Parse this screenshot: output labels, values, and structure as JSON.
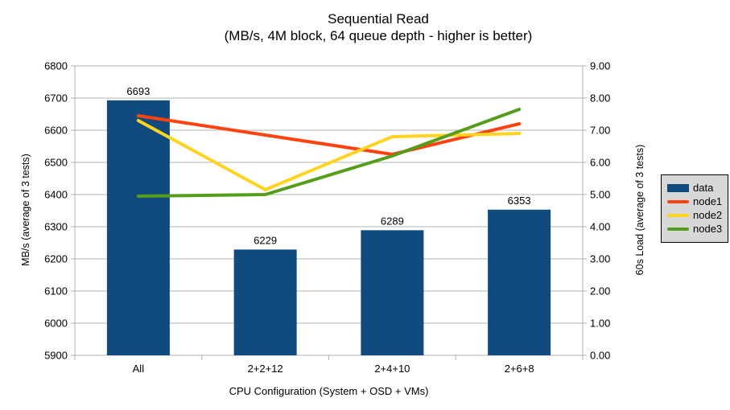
{
  "chart_data": {
    "type": "bar",
    "subtype": "combo-bar-line-dual-axis",
    "title": "Sequential Read",
    "subtitle": "(MB/s, 4M block, 64 queue depth - higher is better)",
    "categories": [
      "All",
      "2+2+12",
      "2+4+10",
      "2+6+8"
    ],
    "bar_series": {
      "name": "data",
      "axis": "left",
      "color": "#114a7f",
      "values": [
        6693,
        6229,
        6289,
        6353
      ],
      "value_labels": [
        "6693",
        "6229",
        "6289",
        "6353"
      ]
    },
    "line_series": [
      {
        "name": "node1",
        "axis": "right",
        "color": "#ff420e",
        "values": [
          7.45,
          6.85,
          6.25,
          7.2
        ]
      },
      {
        "name": "node2",
        "axis": "right",
        "color": "#ffd320",
        "values": [
          7.3,
          5.15,
          6.8,
          6.9
        ]
      },
      {
        "name": "node3",
        "axis": "right",
        "color": "#579d1c",
        "values": [
          4.95,
          5.0,
          6.2,
          7.65
        ]
      }
    ],
    "axes": {
      "left": {
        "title": "MB/s (average of 3 tests)",
        "min": 5900,
        "max": 6800,
        "step": 100,
        "tick_labels": [
          "5900",
          "6000",
          "6100",
          "6200",
          "6300",
          "6400",
          "6500",
          "6600",
          "6700",
          "6800"
        ]
      },
      "right": {
        "title": "60s Load (average of 3 tests)",
        "min": 0,
        "max": 9,
        "step": 1,
        "decimals": 2,
        "tick_labels": [
          "0.00",
          "1.00",
          "2.00",
          "3.00",
          "4.00",
          "5.00",
          "6.00",
          "7.00",
          "8.00",
          "9.00"
        ]
      },
      "x": {
        "title": "CPU Configuration (System + OSD + VMs)"
      }
    },
    "grid": {
      "on": true,
      "color": "#b3b3b3"
    },
    "axis_line_color": "#b3b3b3",
    "text_color": "#000000",
    "legend": {
      "position": "right",
      "background": "#d8d8d8",
      "border_color": "#000000",
      "entries": [
        {
          "label": "data",
          "type": "bar",
          "color": "#114a7f"
        },
        {
          "label": "node1",
          "type": "line",
          "color": "#ff420e"
        },
        {
          "label": "node2",
          "type": "line",
          "color": "#ffd320"
        },
        {
          "label": "node3",
          "type": "line",
          "color": "#579d1c"
        }
      ]
    }
  }
}
